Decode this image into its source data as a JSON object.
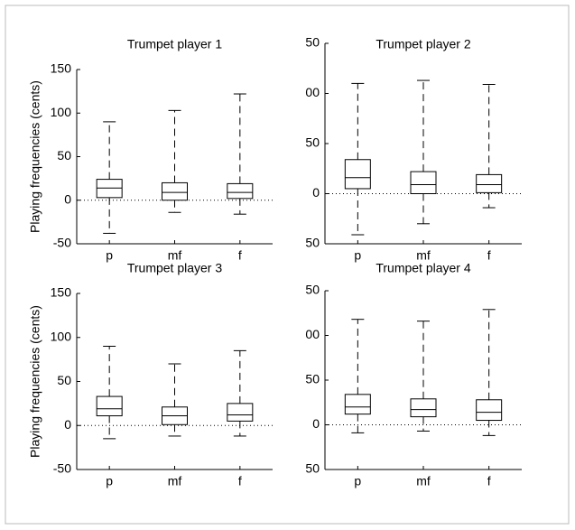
{
  "chart_data": [
    {
      "type": "box",
      "title": "Trumpet player 1",
      "y_label": "Playing frequencies (cents)",
      "categories": [
        "p",
        "mf",
        "f"
      ],
      "whisker_low": [
        -38,
        -14,
        -16
      ],
      "q1": [
        3,
        0,
        2
      ],
      "median": [
        14,
        9,
        9
      ],
      "q3": [
        24,
        20,
        19
      ],
      "whisker_high": [
        90,
        103,
        122
      ],
      "ylim": [
        -50,
        150
      ],
      "yticks": [
        -50,
        0,
        50,
        100,
        150
      ],
      "reference_line": 0,
      "color": "#000000"
    },
    {
      "type": "box",
      "title": "Trumpet player 2",
      "categories": [
        "p",
        "mf",
        "f"
      ],
      "whisker_low": [
        -41,
        -30,
        -14
      ],
      "q1": [
        5,
        0,
        1
      ],
      "median": [
        16,
        9,
        9
      ],
      "q3": [
        34,
        22,
        19
      ],
      "whisker_high": [
        110,
        113,
        109
      ],
      "ylim": [
        -50,
        150
      ],
      "yticks": [
        {
          "value": -50,
          "label": "50"
        },
        0,
        50,
        {
          "value": 100,
          "label": "00"
        },
        {
          "value": 150,
          "label": "50"
        }
      ],
      "reference_line": 0,
      "color": "#000000"
    },
    {
      "type": "box",
      "title": "Trumpet player 3",
      "y_label": "Playing frequencies (cents)",
      "categories": [
        "p",
        "mf",
        "f"
      ],
      "whisker_low": [
        -15,
        -12,
        -12
      ],
      "q1": [
        11,
        1,
        5
      ],
      "median": [
        19,
        11,
        12
      ],
      "q3": [
        33,
        21,
        25
      ],
      "whisker_high": [
        90,
        70,
        85
      ],
      "ylim": [
        -50,
        150
      ],
      "yticks": [
        -50,
        0,
        50,
        100,
        150
      ],
      "reference_line": 0,
      "color": "#000000"
    },
    {
      "type": "box",
      "title": "Trumpet player 4",
      "categories": [
        "p",
        "mf",
        "f"
      ],
      "whisker_low": [
        -9,
        -7,
        -12
      ],
      "q1": [
        12,
        9,
        5
      ],
      "median": [
        20,
        17,
        14
      ],
      "q3": [
        34,
        29,
        28
      ],
      "whisker_high": [
        118,
        116,
        129
      ],
      "ylim": [
        -50,
        150
      ],
      "yticks": [
        {
          "value": -50,
          "label": "50"
        },
        0,
        50,
        {
          "value": 100,
          "label": "00"
        },
        {
          "value": 150,
          "label": "50"
        }
      ],
      "reference_line": 0,
      "color": "#000000"
    }
  ]
}
